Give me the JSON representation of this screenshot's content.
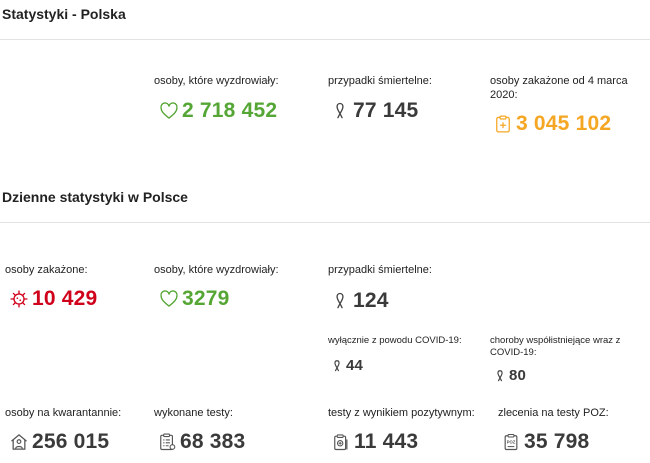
{
  "section1": {
    "title": "Statystyki - Polska",
    "recovered": {
      "label": "osoby, które wyzdrowiały:",
      "value": "2 718 452"
    },
    "deaths": {
      "label": "przypadki śmiertelne:",
      "value": "77 145"
    },
    "infected": {
      "label": "osoby zakażone od 4 marca 2020:",
      "value": "3 045 102"
    }
  },
  "section2": {
    "title": "Dzienne statystyki w Polsce",
    "infected": {
      "label": "osoby zakażone:",
      "value": "10 429"
    },
    "recovered": {
      "label": "osoby, które wyzdrowiały:",
      "value": "3279"
    },
    "deaths": {
      "label": "przypadki śmiertelne:",
      "value": "124",
      "covid_only": {
        "label": "wyłącznie z powodu COVID-19:",
        "value": "44"
      },
      "comorbid": {
        "label": "choroby współistniejące wraz z COVID-19:",
        "value": "80"
      }
    },
    "quarantine": {
      "label": "osoby na kwarantannie:",
      "value": "256 015"
    },
    "tests": {
      "label": "wykonane testy:",
      "value": "68 383"
    },
    "positive_tests": {
      "label": "testy z wynikiem pozytywnym:",
      "value": "11 443"
    },
    "poz_orders": {
      "label": "zlecenia na testy POZ:",
      "value": "35 798"
    }
  },
  "colors": {
    "green": "#55a635",
    "orange": "#f5a623",
    "red": "#d0021b",
    "dark": "#3a3a3a"
  },
  "icons": [
    "heart-icon",
    "ribbon-icon",
    "clipboard-cross-icon",
    "virus-icon",
    "house-person-icon",
    "test-form-icon",
    "positive-test-icon",
    "poz-order-icon"
  ]
}
